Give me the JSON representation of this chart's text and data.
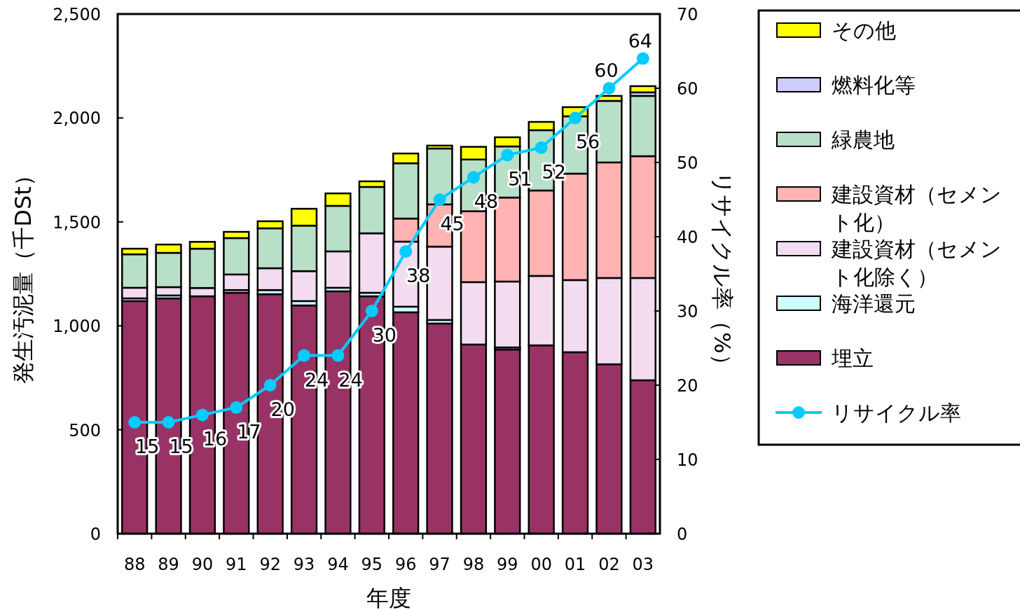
{
  "chart_data": {
    "type": "bar",
    "stacked": true,
    "xlabel": "年度",
    "ylabel": "発生汚泥量（千DSt）",
    "y2label": "リサイクル率（%）",
    "categories": [
      "88",
      "89",
      "90",
      "91",
      "92",
      "93",
      "94",
      "95",
      "96",
      "97",
      "98",
      "99",
      "00",
      "01",
      "02",
      "03"
    ],
    "ylim": [
      0,
      2500
    ],
    "yticks": [
      0,
      500,
      {
        "value": 1000,
        "label": "1,000"
      },
      {
        "value": 1500,
        "label": "1,500"
      },
      {
        "value": 2000,
        "label": "2,000"
      },
      {
        "value": 2500,
        "label": "2,500"
      }
    ],
    "y2lim": [
      0,
      70
    ],
    "y2ticks": [
      0,
      10,
      20,
      30,
      40,
      50,
      60,
      70
    ],
    "grid": false,
    "legend": "right",
    "series": [
      {
        "name": "埋立",
        "color": "#993366",
        "values": [
          1119,
          1132,
          1142,
          1159,
          1152,
          1098,
          1166,
          1142,
          1065,
          1011,
          910,
          886,
          906,
          873,
          815,
          738
        ]
      },
      {
        "name": "海洋還元",
        "color": "#ccffff",
        "values": [
          13,
          14,
          null,
          13,
          20,
          21,
          17,
          17,
          27,
          17,
          null,
          10,
          0,
          0,
          0,
          0
        ]
      },
      {
        "name": "建設資材（セメント化除く）",
        "color": "#f3dcf0",
        "values": [
          51,
          40,
          40,
          75,
          105,
          144,
          175,
          286,
          313,
          353,
          300,
          317,
          334,
          347,
          415,
          492
        ]
      },
      {
        "name": "建設資材（セメント化）",
        "color": "#ffb3b3",
        "values": [
          0,
          0,
          0,
          0,
          0,
          0,
          0,
          0,
          111,
          203,
          341,
          404,
          411,
          512,
          556,
          586
        ]
      },
      {
        "name": "緑農地",
        "color": "#b8e0c8",
        "values": [
          161,
          165,
          189,
          175,
          192,
          219,
          219,
          223,
          266,
          269,
          249,
          246,
          290,
          276,
          296,
          290
        ]
      },
      {
        "name": "燃料化等",
        "color": "#ccccff",
        "values": [
          0,
          0,
          0,
          0,
          0,
          0,
          0,
          0,
          0,
          0,
          0,
          0,
          0,
          0,
          0,
          17
        ]
      },
      {
        "name": "その他",
        "color": "#ffff00",
        "values": [
          27,
          40,
          33,
          30,
          34,
          81,
          60,
          27,
          47,
          14,
          61,
          44,
          40,
          44,
          24,
          30
        ]
      },
      {
        "name": "リサイクル率",
        "type": "line",
        "axis": "y2",
        "color": "#00ccff",
        "marker": "circle",
        "data_labels": true,
        "values": [
          15,
          15,
          16,
          17,
          20,
          24,
          24,
          30,
          38,
          45,
          48,
          51,
          52,
          56,
          60,
          64
        ]
      }
    ]
  }
}
